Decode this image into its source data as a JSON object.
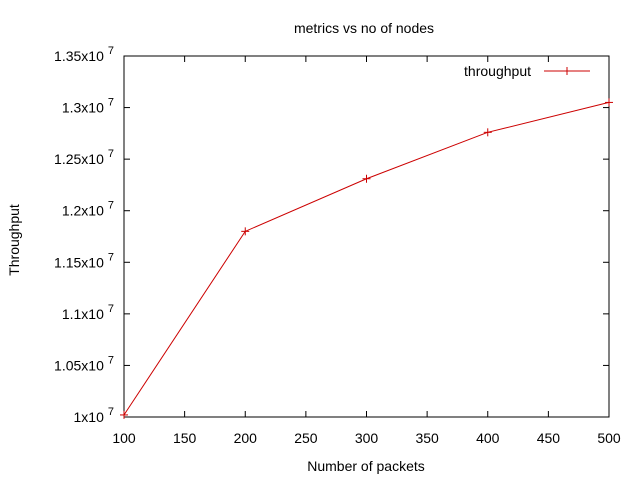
{
  "chart_data": {
    "type": "line",
    "title": "metrics vs no of nodes",
    "xlabel": "Number of packets",
    "ylabel": "Throughput",
    "xlim": [
      100,
      500
    ],
    "ylim": [
      10000000,
      13500000
    ],
    "x_ticks": [
      {
        "value": 100,
        "label": "100"
      },
      {
        "value": 150,
        "label": "150"
      },
      {
        "value": 200,
        "label": "200"
      },
      {
        "value": 250,
        "label": "250"
      },
      {
        "value": 300,
        "label": "300"
      },
      {
        "value": 350,
        "label": "350"
      },
      {
        "value": 400,
        "label": "400"
      },
      {
        "value": 450,
        "label": "450"
      },
      {
        "value": 500,
        "label": "500"
      }
    ],
    "y_ticks": [
      {
        "value": 10000000,
        "mantissa": "1x10",
        "exp": "7"
      },
      {
        "value": 10500000,
        "mantissa": "1.05x10",
        "exp": "7"
      },
      {
        "value": 11000000,
        "mantissa": "1.1x10",
        "exp": "7"
      },
      {
        "value": 11500000,
        "mantissa": "1.15x10",
        "exp": "7"
      },
      {
        "value": 12000000,
        "mantissa": "1.2x10",
        "exp": "7"
      },
      {
        "value": 12500000,
        "mantissa": "1.25x10",
        "exp": "7"
      },
      {
        "value": 13000000,
        "mantissa": "1.3x10",
        "exp": "7"
      },
      {
        "value": 13500000,
        "mantissa": "1.35x10",
        "exp": "7"
      }
    ],
    "series": [
      {
        "name": "throughput",
        "color": "#cc0000",
        "marker": "plus",
        "x": [
          100,
          200,
          300,
          400,
          500
        ],
        "y": [
          10020000,
          11800000,
          12310000,
          12760000,
          13050000
        ]
      }
    ],
    "grid": false,
    "legend_position": "top-right"
  }
}
